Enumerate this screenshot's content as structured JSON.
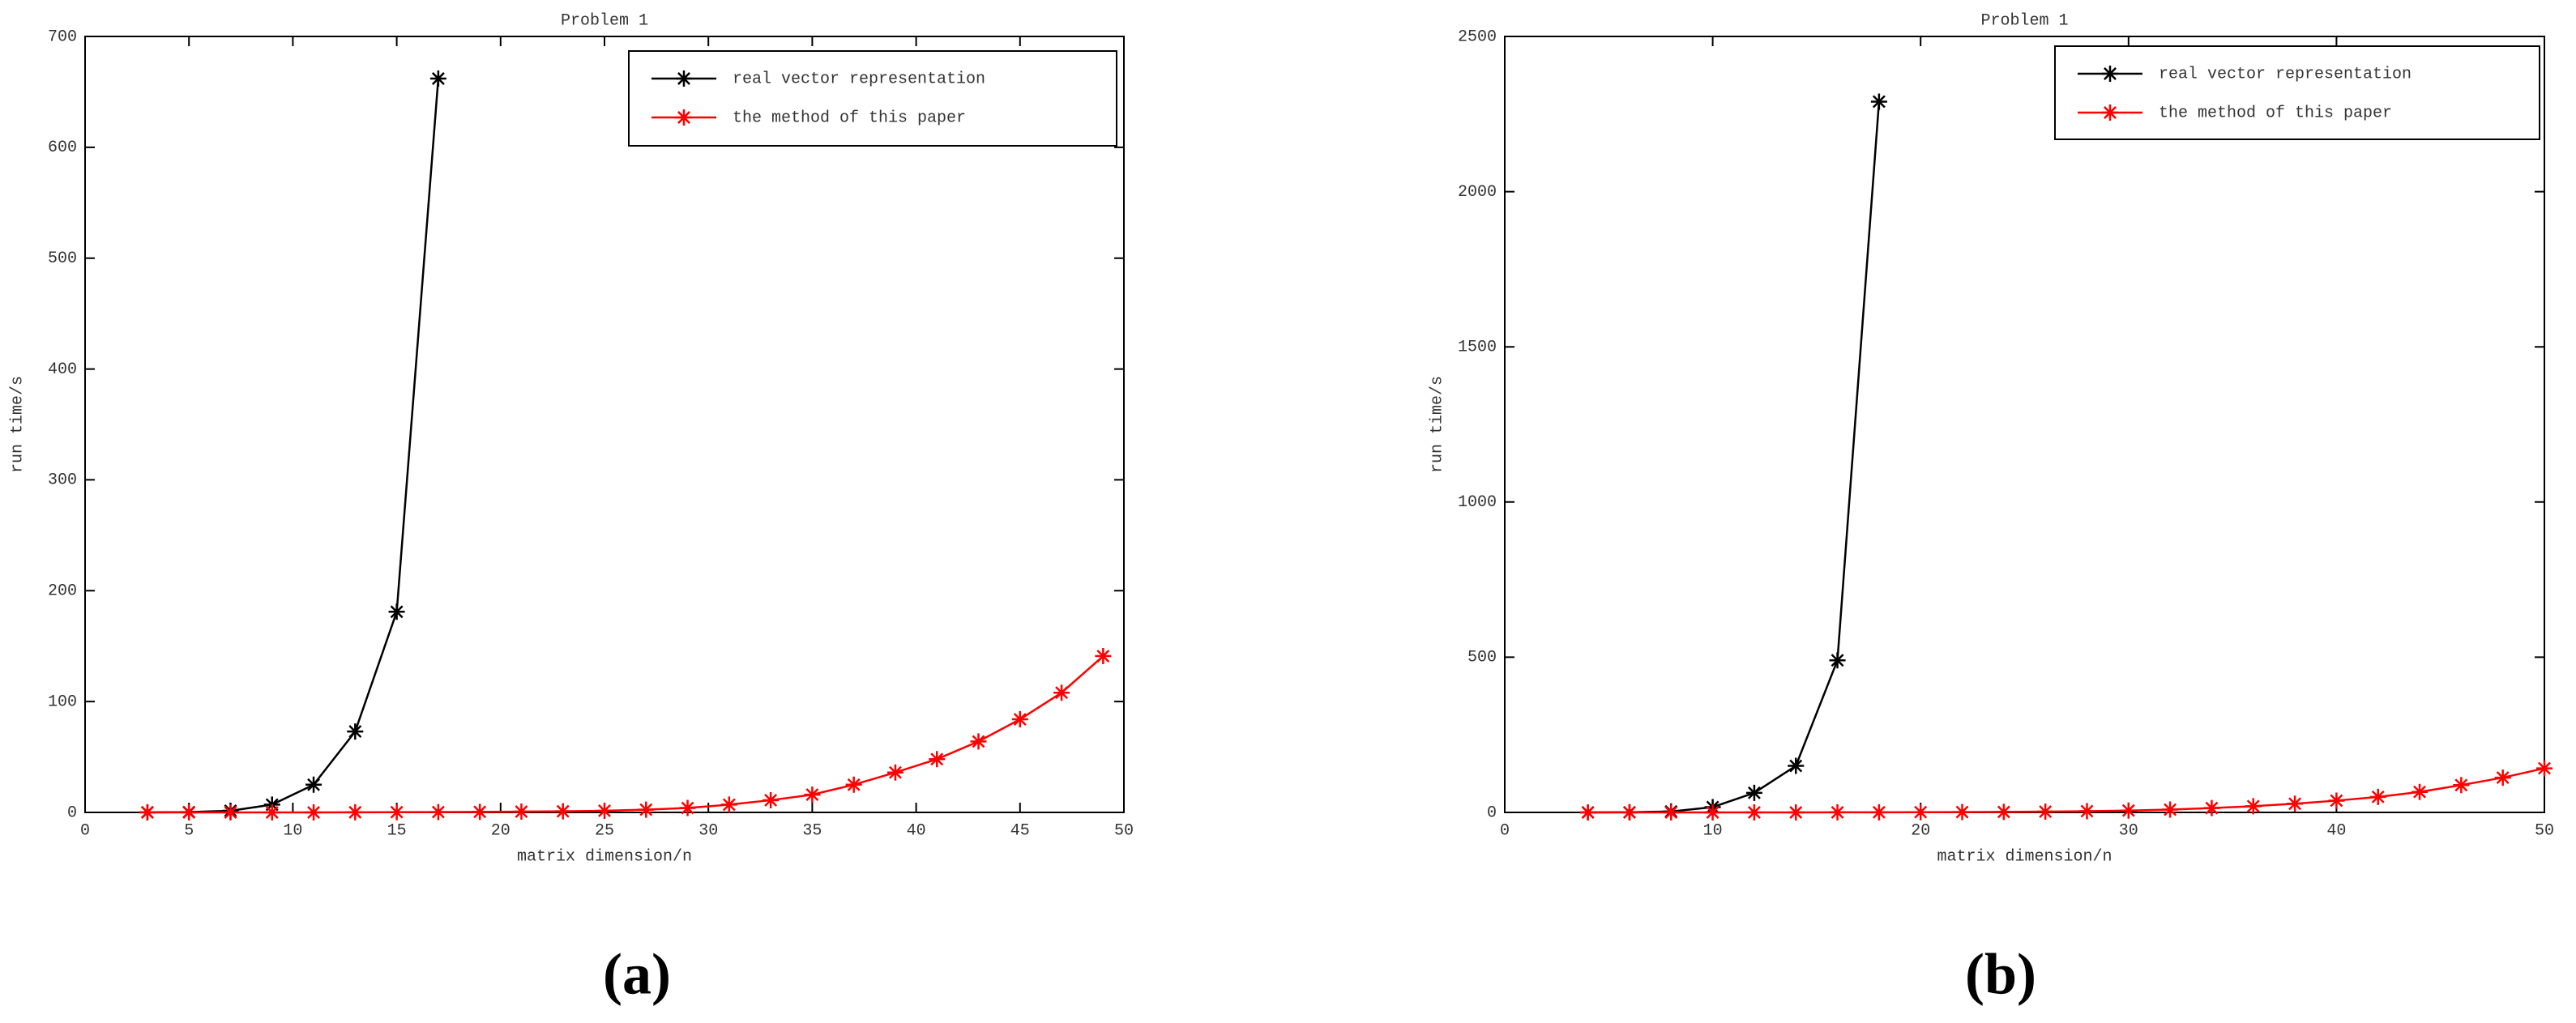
{
  "chart_data": [
    {
      "type": "line",
      "title": "Problem 1",
      "xlabel": "matrix dimension/n",
      "ylabel": "run time/s",
      "caption": "(a)",
      "xlim": [
        0,
        50
      ],
      "xticks": [
        0,
        5,
        10,
        15,
        20,
        25,
        30,
        35,
        40,
        45,
        50
      ],
      "ylim": [
        0,
        700
      ],
      "yticks": [
        0,
        100,
        200,
        300,
        400,
        500,
        600,
        700
      ],
      "legend": "upper right",
      "series": [
        {
          "name": "real vector representation",
          "color": "#000000",
          "x": [
            3,
            5,
            7,
            9,
            11,
            13,
            15,
            17
          ],
          "values": [
            0.1,
            0.3,
            1.5,
            7,
            25,
            73,
            181,
            662
          ]
        },
        {
          "name": "the method of this paper",
          "color": "#ff0000",
          "x": [
            3,
            5,
            7,
            9,
            11,
            13,
            15,
            17,
            19,
            21,
            23,
            25,
            27,
            29,
            31,
            33,
            35,
            37,
            39,
            41,
            43,
            45,
            47,
            49
          ],
          "values": [
            0,
            0,
            0,
            0,
            0,
            0.1,
            0.2,
            0.3,
            0.5,
            0.7,
            1,
            1.5,
            2.5,
            4,
            7,
            11,
            16,
            25,
            36,
            48,
            64,
            84,
            108,
            141
          ]
        }
      ]
    },
    {
      "type": "line",
      "title": "Problem 1",
      "xlabel": "matrix dimension/n",
      "ylabel": "run time/s",
      "caption": "(b)",
      "xlim": [
        0,
        50
      ],
      "xticks": [
        0,
        10,
        20,
        30,
        40,
        50
      ],
      "ylim": [
        0,
        2500
      ],
      "yticks": [
        0,
        500,
        1000,
        1500,
        2000,
        2500
      ],
      "legend": "upper right",
      "series": [
        {
          "name": "real vector representation",
          "color": "#000000",
          "x": [
            4,
            6,
            8,
            10,
            12,
            14,
            16,
            18
          ],
          "values": [
            0.1,
            0.5,
            3,
            17,
            63,
            150,
            490,
            2290
          ]
        },
        {
          "name": "the method of this paper",
          "color": "#ff0000",
          "x": [
            4,
            6,
            8,
            10,
            12,
            14,
            16,
            18,
            20,
            22,
            24,
            26,
            28,
            30,
            32,
            34,
            36,
            38,
            40,
            42,
            44,
            46,
            48,
            50
          ],
          "values": [
            0,
            0,
            0,
            0,
            0,
            0,
            0.2,
            0.4,
            0.7,
            1,
            1.5,
            2.5,
            4,
            6,
            9,
            14,
            20,
            28,
            38,
            50,
            66,
            88,
            112,
            142
          ]
        }
      ]
    }
  ]
}
